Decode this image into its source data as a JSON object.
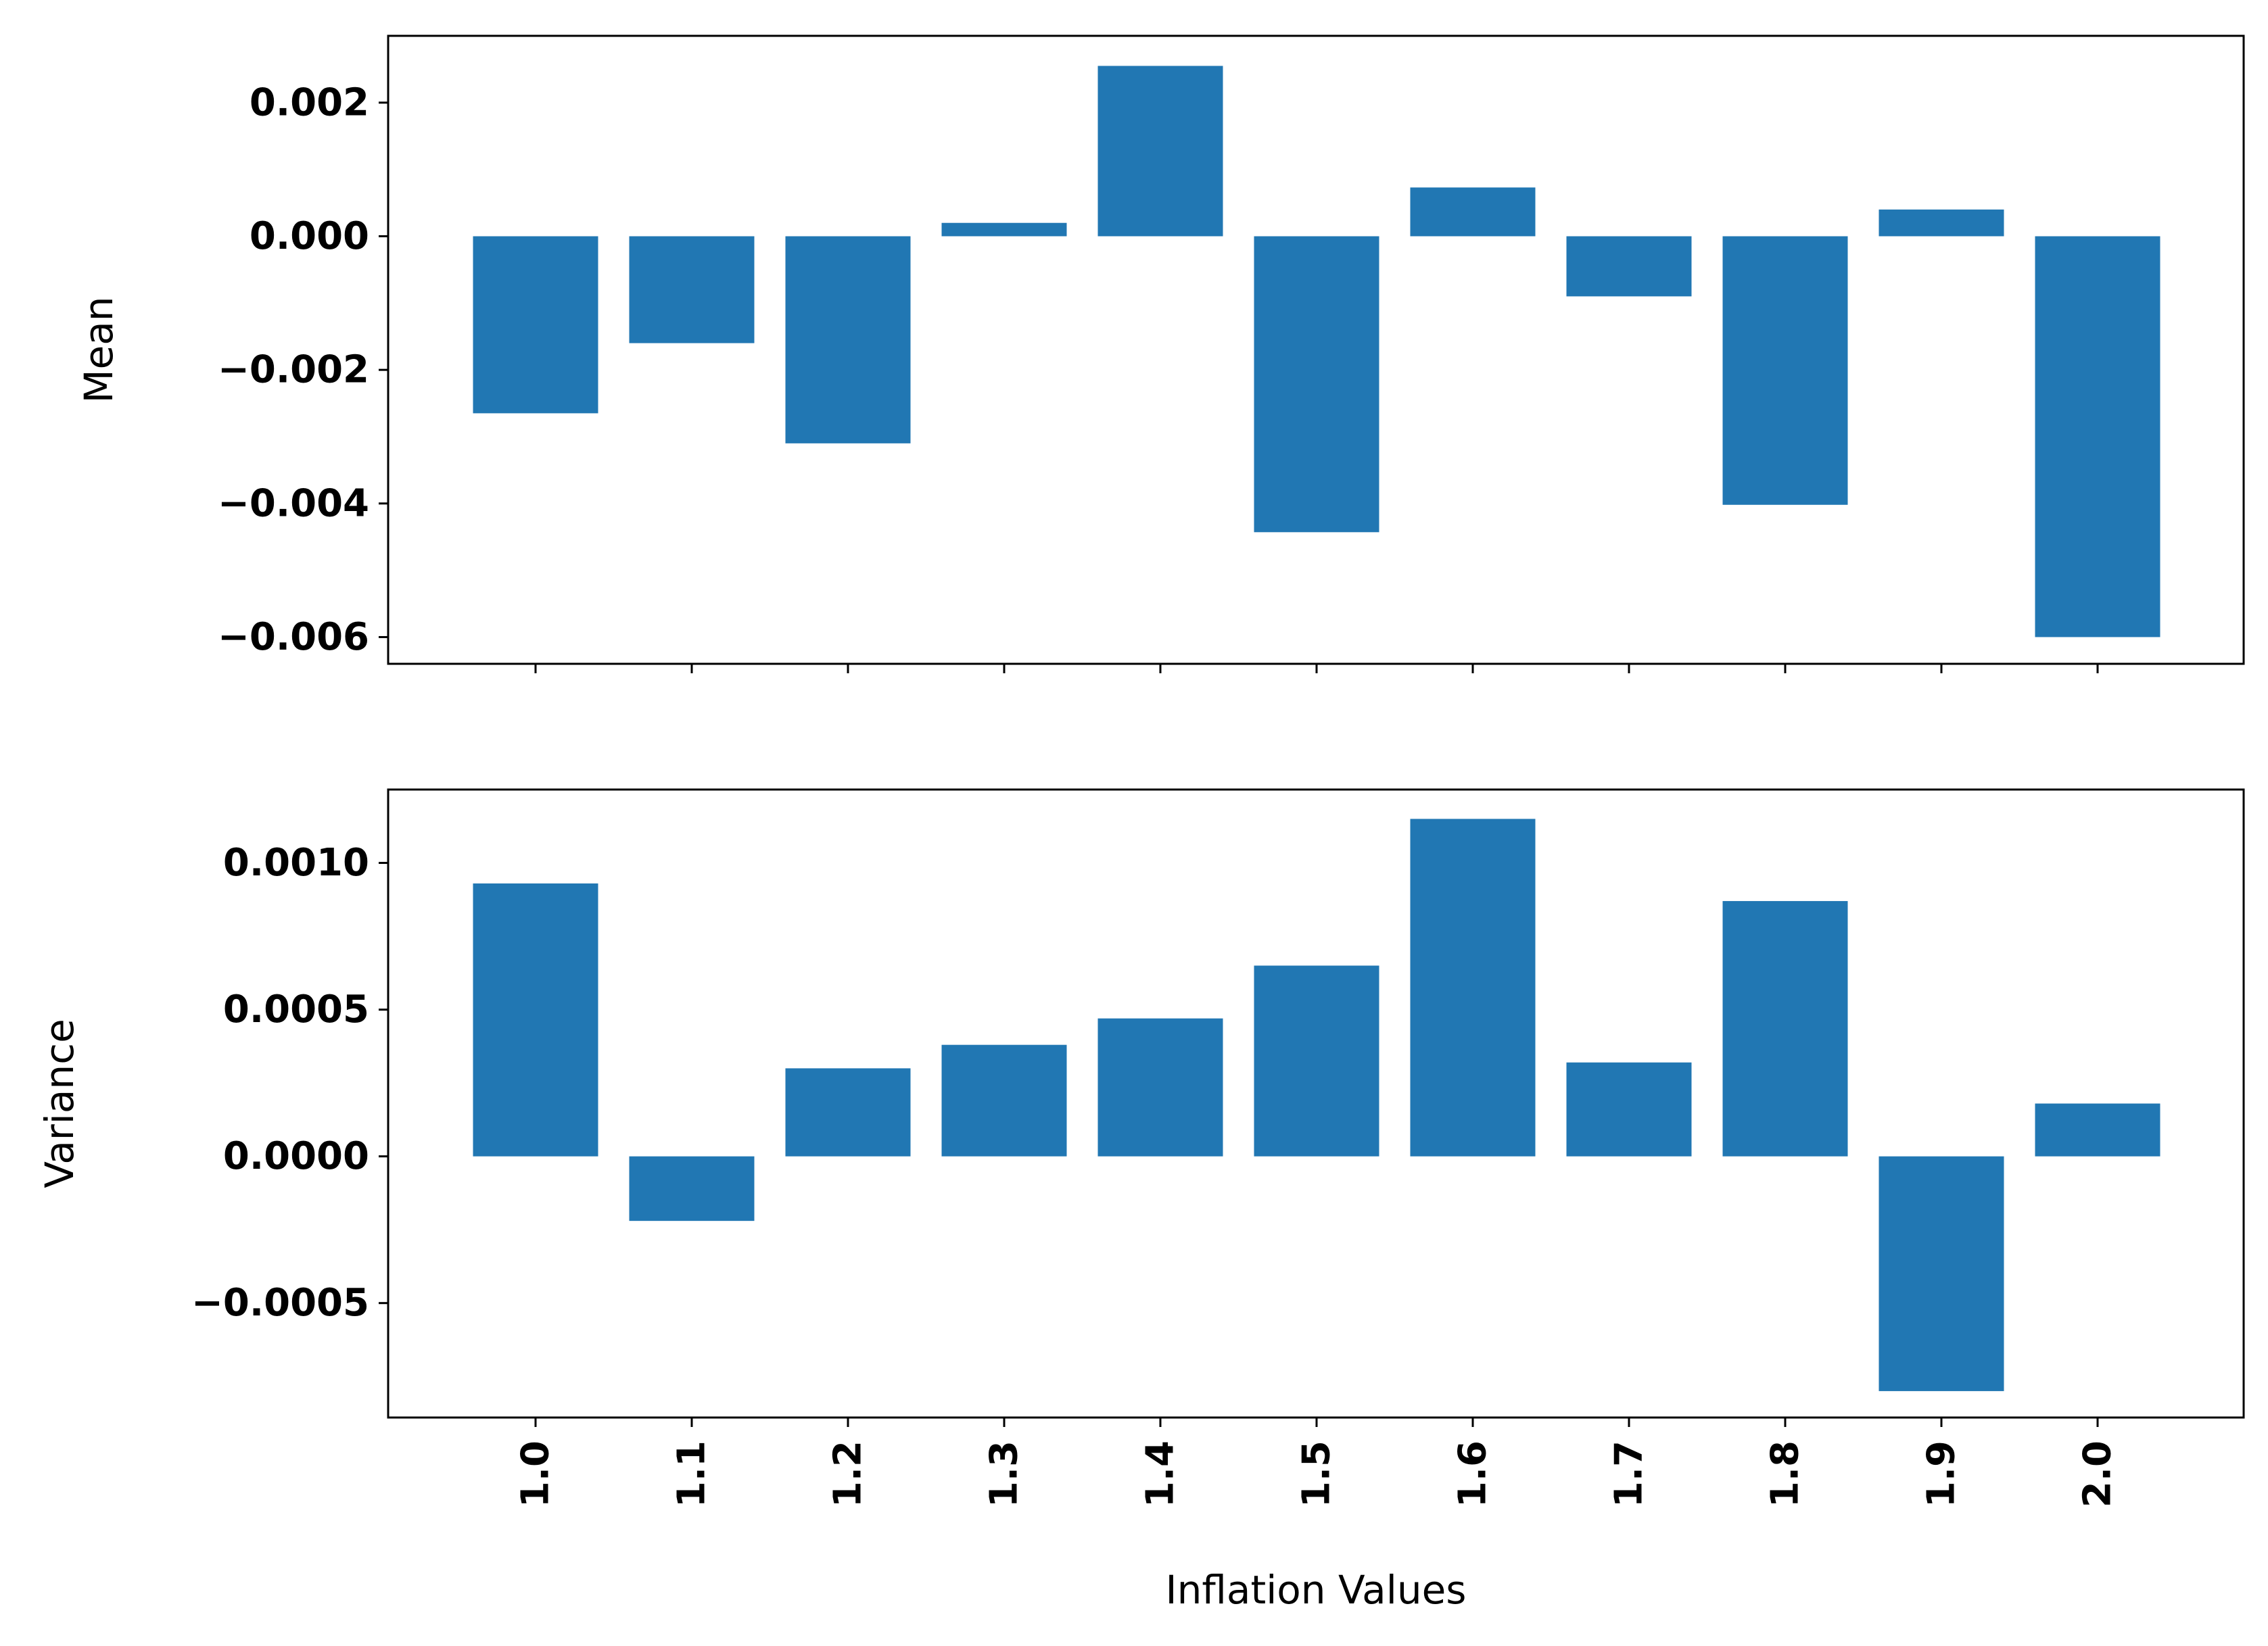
{
  "chart_data": {
    "type": "bar",
    "colors": {
      "bar": "#2177b3",
      "axes": "#000000",
      "background": "#ffffff"
    },
    "categories": [
      "1.0",
      "1.1",
      "1.2",
      "1.3",
      "1.4",
      "1.5",
      "1.6",
      "1.7",
      "1.8",
      "1.9",
      "2.0"
    ],
    "shared_x": true,
    "xlabel": "Inflation Values",
    "xtick_rotation_deg": 90,
    "panels": [
      {
        "name": "mean-panel",
        "ylabel": "Mean",
        "ylim": [
          -0.0064,
          0.003
        ],
        "yticks": [
          -0.006,
          -0.004,
          -0.002,
          0.0,
          0.002
        ],
        "ytick_labels": [
          "−0.006",
          "−0.004",
          "−0.002",
          "0.000",
          "0.002"
        ],
        "values": [
          -0.00265,
          -0.0016,
          -0.0031,
          0.0002,
          0.00255,
          -0.00443,
          0.00073,
          -0.0009,
          -0.00402,
          0.0004,
          -0.006
        ],
        "show_xtick_labels": false
      },
      {
        "name": "variance-panel",
        "ylabel": "Variance",
        "ylim": [
          -0.00089,
          0.00125
        ],
        "yticks": [
          -0.0005,
          0.0,
          0.0005,
          0.001
        ],
        "ytick_labels": [
          "−0.0005",
          "0.0000",
          "0.0005",
          "0.0010"
        ],
        "values": [
          0.00093,
          -0.00022,
          0.0003,
          0.00038,
          0.00047,
          0.00065,
          0.00115,
          0.00032,
          0.00087,
          -0.0008,
          0.00018
        ],
        "show_xtick_labels": true
      }
    ]
  }
}
